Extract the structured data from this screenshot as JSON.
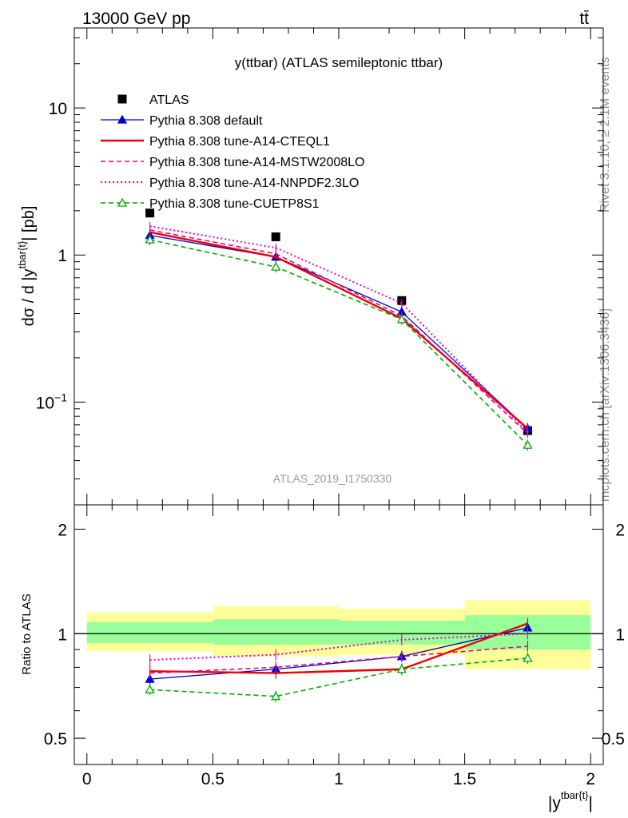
{
  "header": {
    "energy_label": "13000 GeV pp",
    "process_label": "tt̄"
  },
  "side_labels": {
    "rivet": "Rivet 3.1.10, ≥ 2.1M events",
    "mcplots": "mcplots.cern.ch [arXiv:1306.3436]"
  },
  "chart_data": [
    {
      "type": "line",
      "title": "y(ttbar) (ATLAS semileptonic ttbar)",
      "analysis_label": "ATLAS_2019_I1750330",
      "ylabel": "dσ / d |y^{tbar{t}}| [pb]",
      "xlim": [
        -0.05,
        2.05
      ],
      "ylim": [
        0.02,
        35
      ],
      "yscale": "log",
      "x_ticks": [
        0,
        0.5,
        1,
        1.5,
        2
      ],
      "y_ticks": [
        {
          "value": 0.1,
          "label": "10",
          "exp": "−1"
        },
        {
          "value": 1,
          "label": "1",
          "exp": ""
        },
        {
          "value": 10,
          "label": "10",
          "exp": ""
        }
      ],
      "legend_position": "top-left",
      "x": [
        0.25,
        0.75,
        1.25,
        1.75
      ],
      "series": [
        {
          "name": "ATLAS",
          "color": "#000000",
          "style": "data",
          "marker": "square",
          "values": [
            1.93,
            1.33,
            0.49,
            0.064
          ]
        },
        {
          "name": "Pythia 8.308 default",
          "color": "#0000cc",
          "style": "solid-thin",
          "marker": "triangle",
          "values": [
            1.36,
            0.97,
            0.41,
            0.066
          ]
        },
        {
          "name": "Pythia 8.308 tune-A14-CTEQL1",
          "color": "#ee0000",
          "style": "solid-thick",
          "marker": "none",
          "values": [
            1.43,
            0.97,
            0.37,
            0.066
          ]
        },
        {
          "name": "Pythia 8.308 tune-A14-MSTW2008LO",
          "color": "#ee0077",
          "style": "dashed",
          "marker": "none",
          "values": [
            1.48,
            1.02,
            0.385,
            0.061
          ]
        },
        {
          "name": "Pythia 8.308 tune-A14-NNPDF2.3LO",
          "color": "#ee00cc",
          "style": "dotted",
          "marker": "none",
          "values": [
            1.57,
            1.12,
            0.47,
            0.062
          ]
        },
        {
          "name": "Pythia 8.308 tune-CUETP8S1",
          "color": "#00aa00",
          "style": "dashed",
          "marker": "open-triangle",
          "values": [
            1.27,
            0.83,
            0.365,
            0.051
          ]
        }
      ]
    },
    {
      "type": "line",
      "ylabel": "Ratio to ATLAS",
      "xlabel": "|y^{tbar{t}}|",
      "xlim": [
        -0.05,
        2.05
      ],
      "ylim": [
        0.42,
        2.35
      ],
      "yscale": "log",
      "x_ticks": [
        0,
        0.5,
        1,
        1.5,
        2
      ],
      "y_ticks": [
        0.5,
        1,
        2
      ],
      "reference_line": 1,
      "bands": [
        {
          "x_range": [
            0,
            0.5
          ],
          "inner": [
            0.94,
            1.08
          ],
          "outer": [
            0.89,
            1.15
          ]
        },
        {
          "x_range": [
            0.5,
            1
          ],
          "inner": [
            0.93,
            1.1
          ],
          "outer": [
            0.86,
            1.2
          ]
        },
        {
          "x_range": [
            1,
            1.5
          ],
          "inner": [
            0.93,
            1.09
          ],
          "outer": [
            0.87,
            1.18
          ]
        },
        {
          "x_range": [
            1.5,
            2
          ],
          "inner": [
            0.9,
            1.13
          ],
          "outer": [
            0.79,
            1.25
          ]
        }
      ],
      "x": [
        0.25,
        0.75,
        1.25,
        1.75
      ],
      "series": [
        {
          "name": "Pythia 8.308 default",
          "color": "#0000cc",
          "style": "solid-thin",
          "marker": "triangle",
          "values": [
            0.74,
            0.79,
            0.86,
            1.04
          ]
        },
        {
          "name": "Pythia 8.308 tune-A14-CTEQL1",
          "color": "#ee0000",
          "style": "solid-thick",
          "marker": "none",
          "values": [
            0.78,
            0.77,
            0.79,
            1.07
          ]
        },
        {
          "name": "Pythia 8.308 tune-A14-MSTW2008LO",
          "color": "#ee0077",
          "style": "dashed",
          "marker": "none",
          "values": [
            0.77,
            0.8,
            0.86,
            0.92
          ]
        },
        {
          "name": "Pythia 8.308 tune-A14-NNPDF2.3LO",
          "color": "#ee00cc",
          "style": "dotted",
          "marker": "none",
          "values": [
            0.84,
            0.87,
            0.96,
            1.0
          ]
        },
        {
          "name": "Pythia 8.308 tune-CUETP8S1",
          "color": "#00aa00",
          "style": "dashed",
          "marker": "open-triangle",
          "values": [
            0.69,
            0.66,
            0.79,
            0.85
          ]
        }
      ]
    }
  ]
}
